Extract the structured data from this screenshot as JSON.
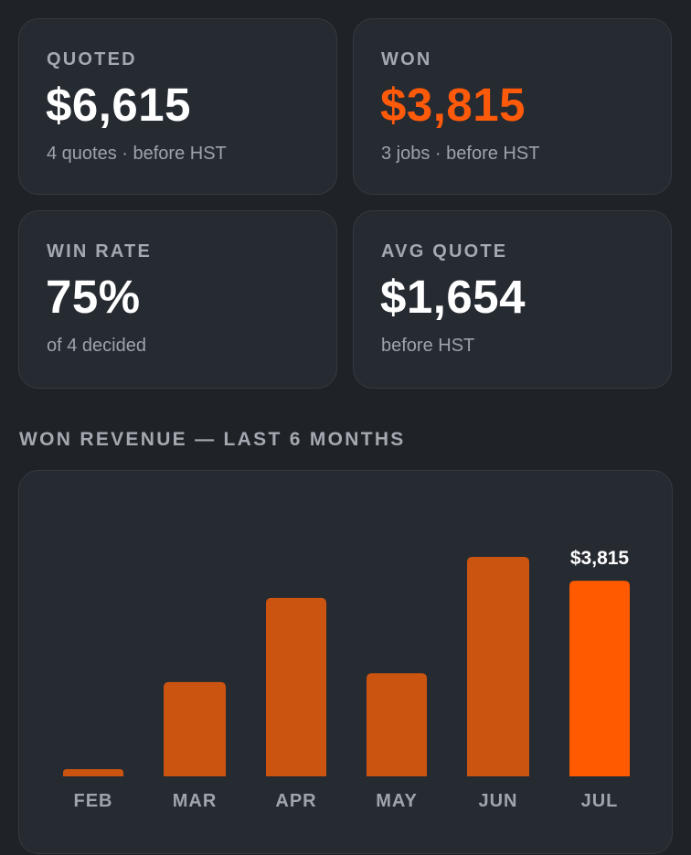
{
  "stats": [
    {
      "label": "QUOTED",
      "value": "$6,615",
      "sub": "4 quotes · before HST"
    },
    {
      "label": "WON",
      "value": "$3,815",
      "sub": "3 jobs · before HST"
    },
    {
      "label": "WIN RATE",
      "value": "75%",
      "sub": "of 4 decided"
    },
    {
      "label": "AVG QUOTE",
      "value": "$1,654",
      "sub": "before HST"
    }
  ],
  "colors": {
    "accent": "#ff5a0a",
    "bar": "#cc5411",
    "bar_current": "#ff5a00",
    "card_bg": "#262a31",
    "page_bg": "#1f2227"
  },
  "revenue": {
    "title": "WON REVENUE — LAST 6 MONTHS"
  },
  "chart_data": {
    "type": "bar",
    "title": "WON REVENUE — LAST 6 MONTHS",
    "categories": [
      "FEB",
      "MAR",
      "APR",
      "MAY",
      "JUN",
      "JUL"
    ],
    "values": [
      140,
      1840,
      3480,
      2010,
      4280,
      3815
    ],
    "highlight_index": 5,
    "data_labels": [
      {
        "index": 5,
        "text": "$3,815"
      }
    ],
    "ylim": [
      0,
      4280
    ],
    "grid": false,
    "legend": "none"
  }
}
